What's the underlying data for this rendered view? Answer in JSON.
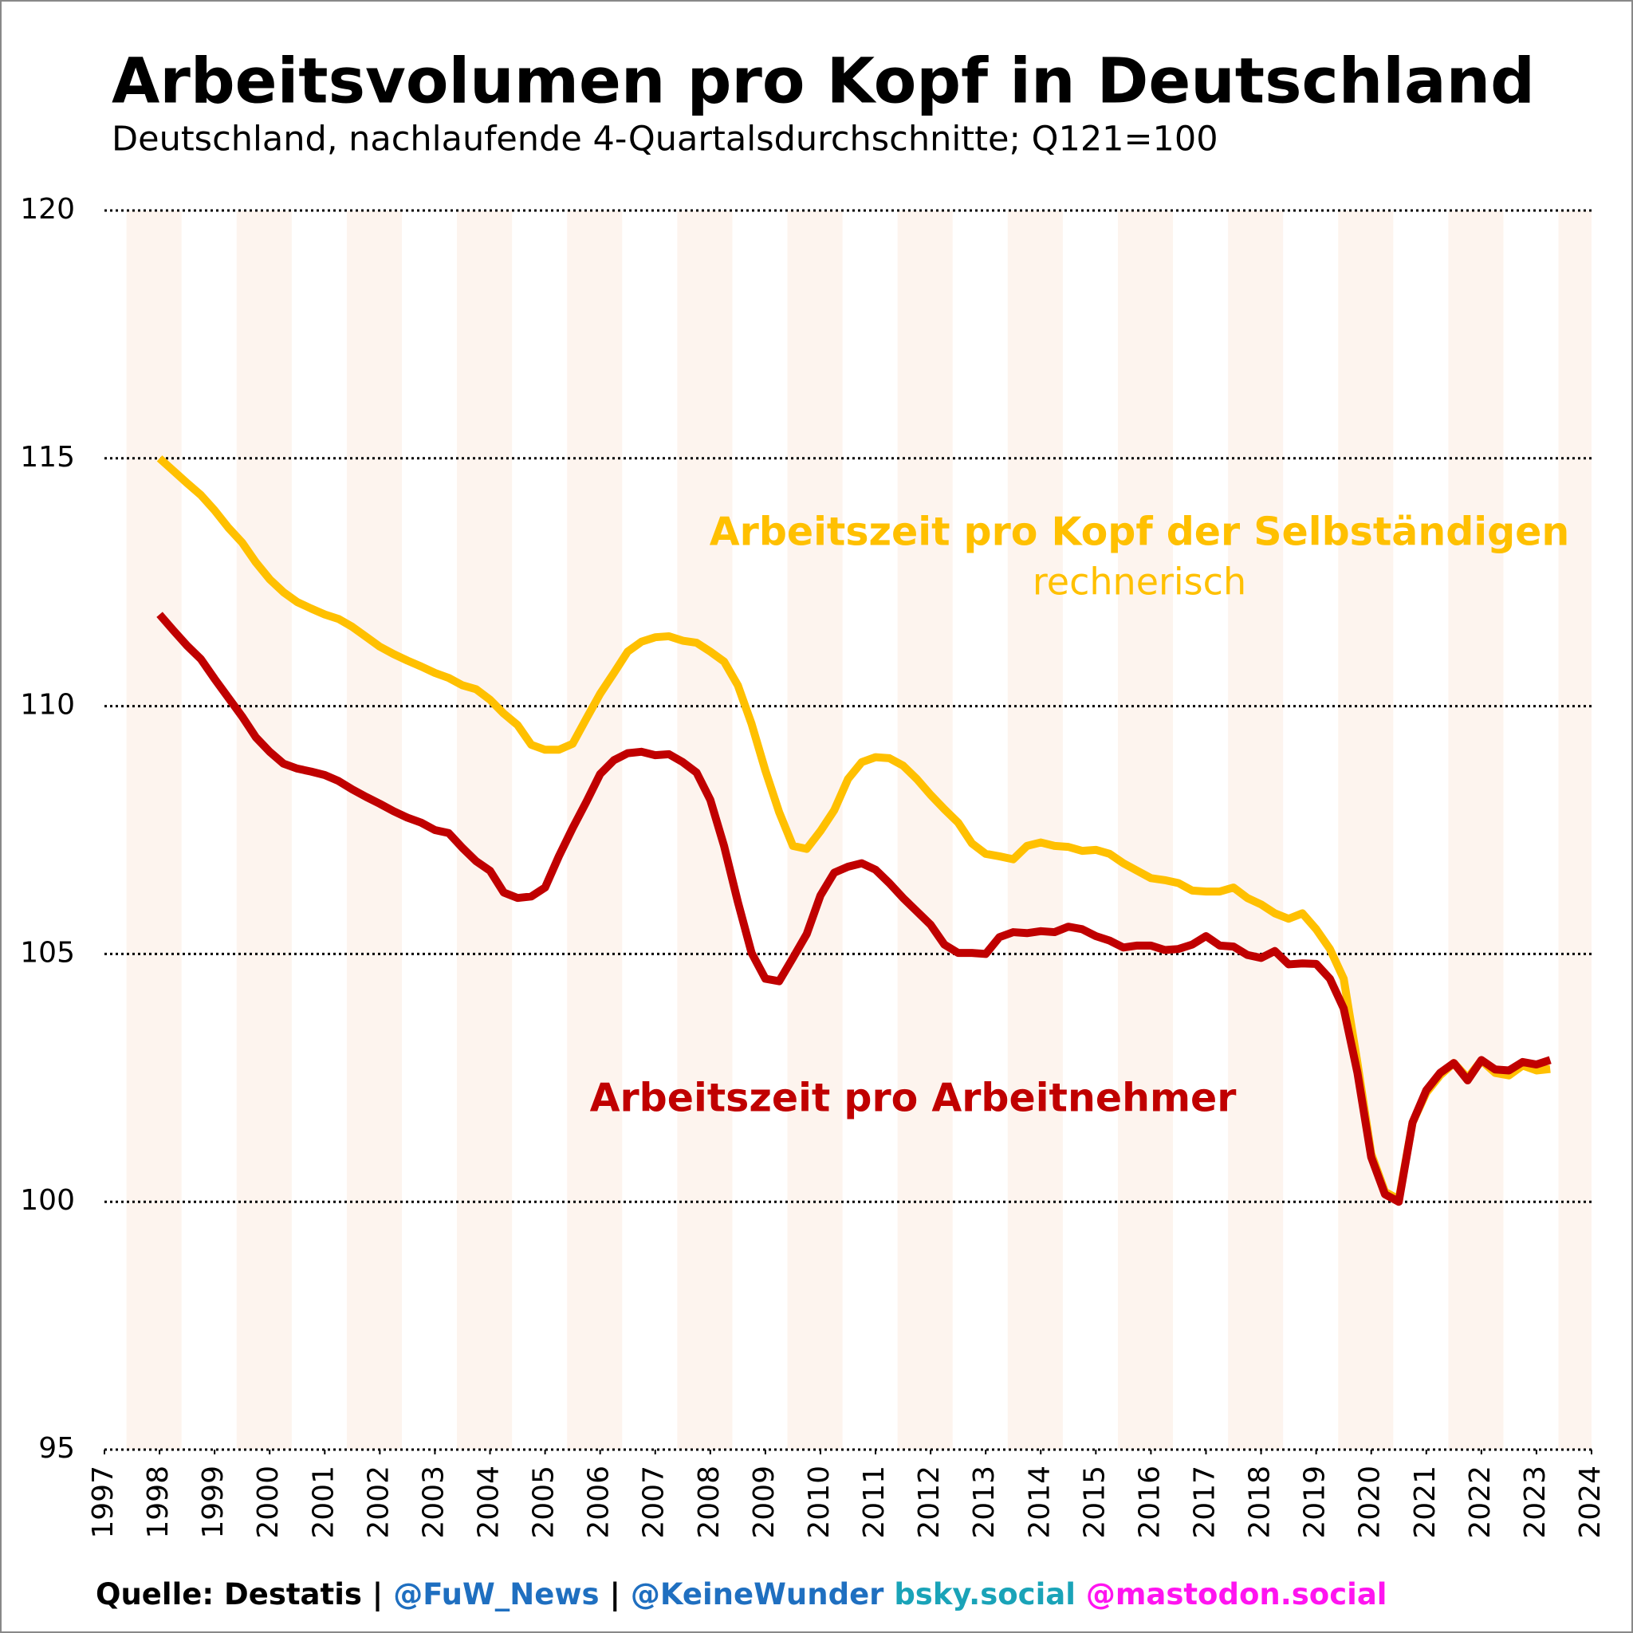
{
  "chart_data": {
    "type": "line",
    "title": "Arbeitsvolumen pro Kopf in Deutschland",
    "subtitle": "Deutschland, nachlaufende 4-Quartalsdurchschnitte; Q121=100",
    "x": [
      1998,
      1998.25,
      1998.5,
      1998.75,
      1999,
      1999.25,
      1999.5,
      1999.75,
      2000,
      2000.25,
      2000.5,
      2000.75,
      2001,
      2001.25,
      2001.5,
      2001.75,
      2002,
      2002.25,
      2002.5,
      2002.75,
      2003,
      2003.25,
      2003.5,
      2003.75,
      2004,
      2004.25,
      2004.5,
      2004.75,
      2005,
      2005.25,
      2005.5,
      2005.75,
      2006,
      2006.25,
      2006.5,
      2006.75,
      2007,
      2007.25,
      2007.5,
      2007.75,
      2008,
      2008.25,
      2008.5,
      2008.75,
      2009,
      2009.25,
      2009.5,
      2009.75,
      2010,
      2010.25,
      2010.5,
      2010.75,
      2011,
      2011.25,
      2011.5,
      2011.75,
      2012,
      2012.25,
      2012.5,
      2012.75,
      2013,
      2013.25,
      2013.5,
      2013.75,
      2014,
      2014.25,
      2014.5,
      2014.75,
      2015,
      2015.25,
      2015.5,
      2015.75,
      2016,
      2016.25,
      2016.5,
      2016.75,
      2017,
      2017.25,
      2017.5,
      2017.75,
      2018,
      2018.25,
      2018.5,
      2018.75,
      2019,
      2019.25,
      2019.5,
      2019.75,
      2020,
      2020.25,
      2020.5,
      2020.75,
      2021,
      2021.25,
      2021.5,
      2021.75,
      2022,
      2022.25,
      2022.5,
      2022.75,
      2023,
      2023.25
    ],
    "series": [
      {
        "name": "Arbeitszeit pro Kopf der Selbständigen",
        "note": "rechnerisch",
        "color": "#FFC000",
        "values": [
          115.0,
          114.75,
          114.5,
          114.26,
          113.95,
          113.6,
          113.3,
          112.9,
          112.56,
          112.3,
          112.1,
          111.97,
          111.85,
          111.76,
          111.6,
          111.4,
          111.2,
          111.05,
          110.92,
          110.8,
          110.67,
          110.57,
          110.42,
          110.34,
          110.13,
          109.85,
          109.62,
          109.22,
          109.12,
          109.12,
          109.24,
          109.75,
          110.25,
          110.67,
          111.1,
          111.3,
          111.39,
          111.41,
          111.32,
          111.28,
          111.1,
          110.9,
          110.42,
          109.64,
          108.7,
          107.86,
          107.18,
          107.12,
          107.48,
          107.9,
          108.53,
          108.87,
          108.97,
          108.95,
          108.8,
          108.53,
          108.21,
          107.92,
          107.65,
          107.23,
          107.02,
          106.97,
          106.91,
          107.18,
          107.25,
          107.18,
          107.16,
          107.08,
          107.1,
          107.02,
          106.83,
          106.68,
          106.53,
          106.49,
          106.43,
          106.28,
          106.26,
          106.26,
          106.34,
          106.13,
          106.0,
          105.82,
          105.71,
          105.82,
          105.5,
          105.1,
          104.5,
          102.8,
          100.97,
          100.2,
          100.05,
          101.6,
          102.2,
          102.55,
          102.8,
          102.5,
          102.85,
          102.6,
          102.55,
          102.75,
          102.65,
          102.68
        ]
      },
      {
        "name": "Arbeitszeit pro Arbeitnehmer",
        "color": "#C00000",
        "values": [
          111.85,
          111.53,
          111.22,
          110.95,
          110.55,
          110.17,
          109.79,
          109.37,
          109.08,
          108.84,
          108.74,
          108.68,
          108.61,
          108.49,
          108.32,
          108.17,
          108.03,
          107.88,
          107.75,
          107.65,
          107.5,
          107.44,
          107.14,
          106.87,
          106.68,
          106.24,
          106.13,
          106.16,
          106.34,
          106.97,
          107.54,
          108.07,
          108.63,
          108.91,
          109.05,
          109.08,
          109.01,
          109.03,
          108.87,
          108.66,
          108.11,
          107.18,
          106.05,
          105.02,
          104.5,
          104.45,
          104.92,
          105.4,
          106.18,
          106.64,
          106.76,
          106.83,
          106.7,
          106.43,
          106.13,
          105.86,
          105.59,
          105.19,
          105.02,
          105.02,
          105.0,
          105.34,
          105.44,
          105.42,
          105.46,
          105.44,
          105.55,
          105.5,
          105.36,
          105.27,
          105.13,
          105.17,
          105.17,
          105.08,
          105.1,
          105.19,
          105.36,
          105.17,
          105.15,
          104.98,
          104.92,
          105.06,
          104.79,
          104.81,
          104.8,
          104.5,
          103.9,
          102.6,
          100.9,
          100.15,
          100.0,
          101.6,
          102.25,
          102.6,
          102.8,
          102.45,
          102.86,
          102.67,
          102.65,
          102.82,
          102.77,
          102.86
        ]
      }
    ],
    "xlim": [
      1997,
      2024
    ],
    "xticks": [
      1997,
      1998,
      1999,
      2000,
      2001,
      2002,
      2003,
      2004,
      2005,
      2006,
      2007,
      2008,
      2009,
      2010,
      2011,
      2012,
      2013,
      2014,
      2015,
      2016,
      2017,
      2018,
      2019,
      2020,
      2021,
      2022,
      2023,
      2024
    ],
    "ylim": [
      95,
      120
    ],
    "yticks": [
      95,
      100,
      105,
      110,
      115,
      120
    ],
    "grid": true,
    "footer": [
      {
        "text": "Quelle: Destatis",
        "color": "#000000"
      },
      {
        "text": "|",
        "color": "#000000"
      },
      {
        "text": "@FuW_News",
        "color": "#1f6fc0"
      },
      {
        "text": "|",
        "color": "#000000"
      },
      {
        "text": "@KeineWunder",
        "color": "#1f6fc0"
      },
      {
        "text": "bsky.social",
        "color": "#1aa3b8"
      },
      {
        "text": "@mastodon.social",
        "color": "#ff14f0"
      }
    ]
  }
}
